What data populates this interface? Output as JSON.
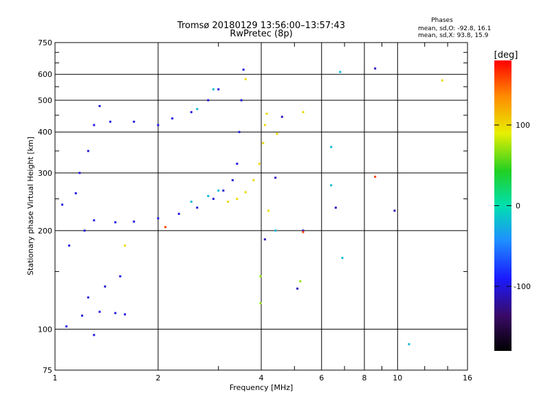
{
  "chart_data": {
    "type": "scatter",
    "title": "Tromsø 20180129 13:56:00–13:57:43",
    "subtitle": "RwPretec (8p)",
    "stats": {
      "heading": "Phases",
      "line_o": "mean, sd,O: -92.8, 16.1",
      "line_x": "mean, sd,X:  93.8, 15.9"
    },
    "xlabel": "Frequency [MHz]",
    "ylabel": "Stationary phase Virtual Height [km]",
    "xscale": "log",
    "yscale": "log",
    "xlim": [
      1,
      16
    ],
    "ylim": [
      75,
      750
    ],
    "x_ticks": [
      1,
      2,
      4,
      6,
      8,
      10,
      16
    ],
    "x_tick_labels": [
      "1",
      "2",
      "4",
      "6",
      "8",
      "10",
      "16"
    ],
    "y_ticks": [
      75,
      100,
      200,
      300,
      400,
      500,
      600,
      750
    ],
    "y_tick_labels": [
      "75",
      "100",
      "200",
      "300",
      "400",
      "500",
      "600",
      "750"
    ],
    "grid": true,
    "colorbar": {
      "label": "[deg]",
      "range": [
        -180,
        180
      ],
      "ticks": [
        100,
        0,
        -100
      ],
      "tick_labels": [
        "100",
        "0",
        "-100"
      ]
    },
    "series": [
      {
        "points": [
          [
            1.2,
            110
          ],
          [
            1.35,
            113
          ],
          [
            1.5,
            112
          ],
          [
            1.6,
            111
          ],
          [
            1.25,
            125
          ],
          [
            1.4,
            135
          ],
          [
            1.55,
            145
          ],
          [
            1.1,
            180
          ],
          [
            1.22,
            200
          ],
          [
            1.3,
            215
          ],
          [
            1.5,
            212
          ],
          [
            1.7,
            213
          ],
          [
            2.0,
            218
          ],
          [
            2.3,
            225
          ],
          [
            2.6,
            235
          ],
          [
            2.9,
            250
          ],
          [
            3.1,
            265
          ],
          [
            3.3,
            285
          ],
          [
            3.4,
            320
          ],
          [
            3.45,
            400
          ],
          [
            3.5,
            500
          ],
          [
            3.55,
            620
          ],
          [
            1.18,
            300
          ],
          [
            1.25,
            350
          ],
          [
            1.3,
            420
          ],
          [
            1.35,
            480
          ],
          [
            1.45,
            430
          ],
          [
            1.7,
            430
          ],
          [
            2.0,
            420
          ],
          [
            2.2,
            440
          ],
          [
            2.5,
            460
          ],
          [
            2.8,
            500
          ],
          [
            3.0,
            540
          ],
          [
            1.08,
            102
          ],
          [
            1.3,
            96
          ],
          [
            1.05,
            240
          ],
          [
            1.15,
            260
          ]
        ],
        "phase": -100
      },
      {
        "points": [
          [
            3.2,
            245
          ],
          [
            3.4,
            250
          ],
          [
            3.6,
            262
          ],
          [
            3.8,
            285
          ],
          [
            3.95,
            320
          ],
          [
            4.05,
            370
          ],
          [
            4.1,
            420
          ],
          [
            4.15,
            455
          ],
          [
            3.6,
            580
          ],
          [
            5.3,
            460
          ],
          [
            4.2,
            230
          ],
          [
            13.5,
            575
          ],
          [
            1.6,
            180
          ],
          [
            4.45,
            395
          ]
        ],
        "phase": 100
      },
      {
        "points": [
          [
            2.5,
            245
          ],
          [
            2.8,
            255
          ],
          [
            3.0,
            265
          ],
          [
            2.6,
            470
          ],
          [
            2.9,
            540
          ],
          [
            6.4,
            360
          ],
          [
            6.4,
            275
          ],
          [
            6.9,
            165
          ],
          [
            6.8,
            610
          ],
          [
            10.8,
            90
          ],
          [
            4.4,
            200
          ]
        ],
        "phase": -20
      },
      {
        "points": [
          [
            8.6,
            625
          ],
          [
            9.8,
            230
          ],
          [
            6.6,
            235
          ],
          [
            4.6,
            445
          ],
          [
            5.3,
            200
          ],
          [
            5.1,
            133
          ],
          [
            4.4,
            290
          ],
          [
            4.1,
            188
          ]
        ],
        "phase": -110
      },
      {
        "points": [
          [
            8.6,
            292
          ],
          [
            5.3,
            198
          ],
          [
            2.1,
            205
          ]
        ],
        "phase": 160
      },
      {
        "points": [
          [
            3.98,
            120
          ],
          [
            3.98,
            145
          ],
          [
            5.2,
            140
          ]
        ],
        "phase": 70
      }
    ]
  }
}
